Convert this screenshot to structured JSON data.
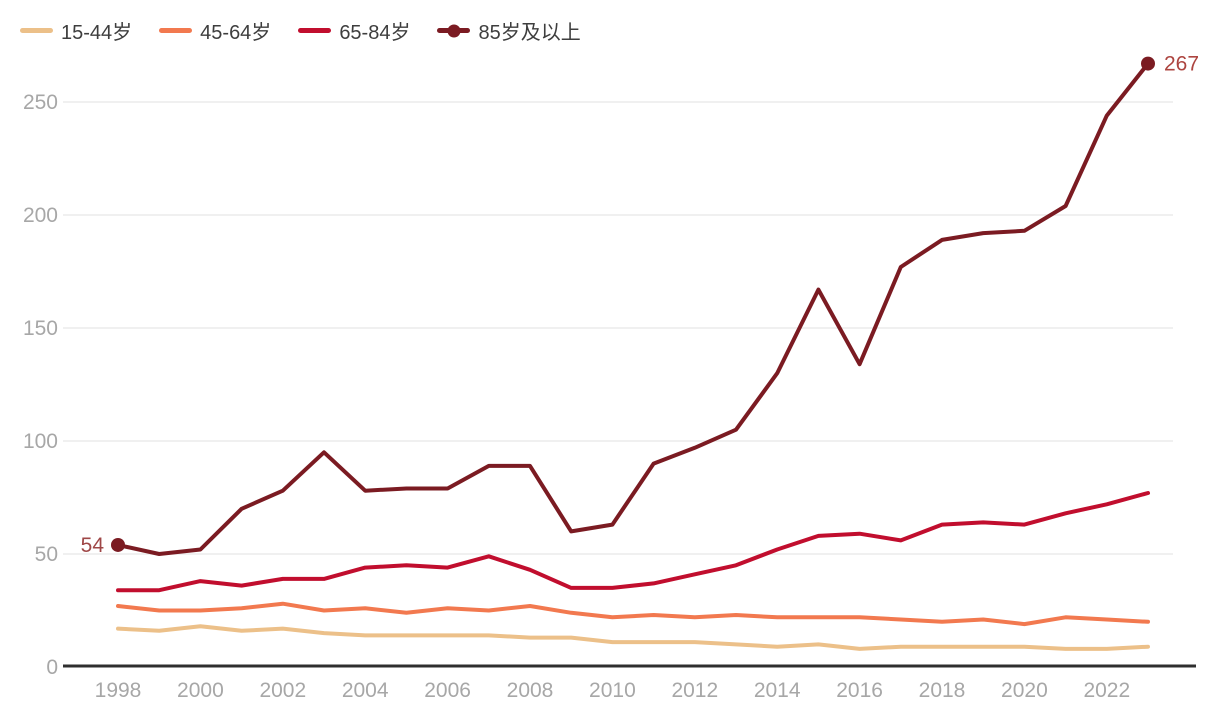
{
  "page": {
    "background": "#ffffff"
  },
  "chart_data": {
    "type": "line",
    "title": "",
    "x_years": [
      1998,
      1999,
      2000,
      2001,
      2002,
      2003,
      2004,
      2005,
      2006,
      2007,
      2008,
      2009,
      2010,
      2011,
      2012,
      2013,
      2014,
      2015,
      2016,
      2017,
      2018,
      2019,
      2020,
      2021,
      2022,
      2023
    ],
    "x_tick_labels": [
      "1998",
      "2000",
      "2002",
      "2004",
      "2006",
      "2008",
      "2010",
      "2012",
      "2014",
      "2016",
      "2018",
      "2020",
      "2022"
    ],
    "y_ticks": [
      0,
      50,
      100,
      150,
      200,
      250
    ],
    "y_tick_labels": [
      "0",
      "50",
      "100",
      "150",
      "200",
      "250"
    ],
    "ylim": [
      0,
      275
    ],
    "grid": "horizontal-only",
    "legend_position": "top-left",
    "axis_style": {
      "tick_text_color": "#a7a7a7",
      "gridline_color": "#ebebeb",
      "axis_line_color": "#2f2f2f"
    },
    "series": [
      {
        "name": "15-44岁",
        "color": "#ecc089",
        "values": [
          17,
          16,
          18,
          16,
          17,
          15,
          14,
          14,
          14,
          14,
          13,
          13,
          11,
          11,
          11,
          10,
          9,
          10,
          8,
          9,
          9,
          9,
          9,
          8,
          8,
          9
        ]
      },
      {
        "name": "45-64岁",
        "color": "#f2794f",
        "values": [
          27,
          25,
          25,
          26,
          28,
          25,
          26,
          24,
          26,
          25,
          27,
          24,
          22,
          23,
          22,
          23,
          22,
          22,
          22,
          21,
          20,
          21,
          19,
          22,
          21,
          20
        ]
      },
      {
        "name": "65-84岁",
        "color": "#c10e2e",
        "values": [
          34,
          34,
          38,
          36,
          39,
          39,
          44,
          45,
          44,
          49,
          43,
          35,
          35,
          37,
          41,
          45,
          52,
          58,
          59,
          56,
          63,
          64,
          63,
          68,
          72,
          77
        ]
      },
      {
        "name": "85岁及以上",
        "color": "#7b1b22",
        "endpoint_markers": true,
        "values": [
          54,
          50,
          52,
          70,
          78,
          95,
          78,
          79,
          79,
          89,
          89,
          60,
          63,
          90,
          97,
          105,
          130,
          167,
          134,
          177,
          189,
          192,
          193,
          204,
          244,
          267
        ]
      }
    ],
    "annotations": [
      {
        "series": "85岁及以上",
        "point": "first",
        "text": "54",
        "color": "#9f4747"
      },
      {
        "series": "85岁及以上",
        "point": "last",
        "text": "267",
        "color": "#ad4540"
      }
    ]
  }
}
